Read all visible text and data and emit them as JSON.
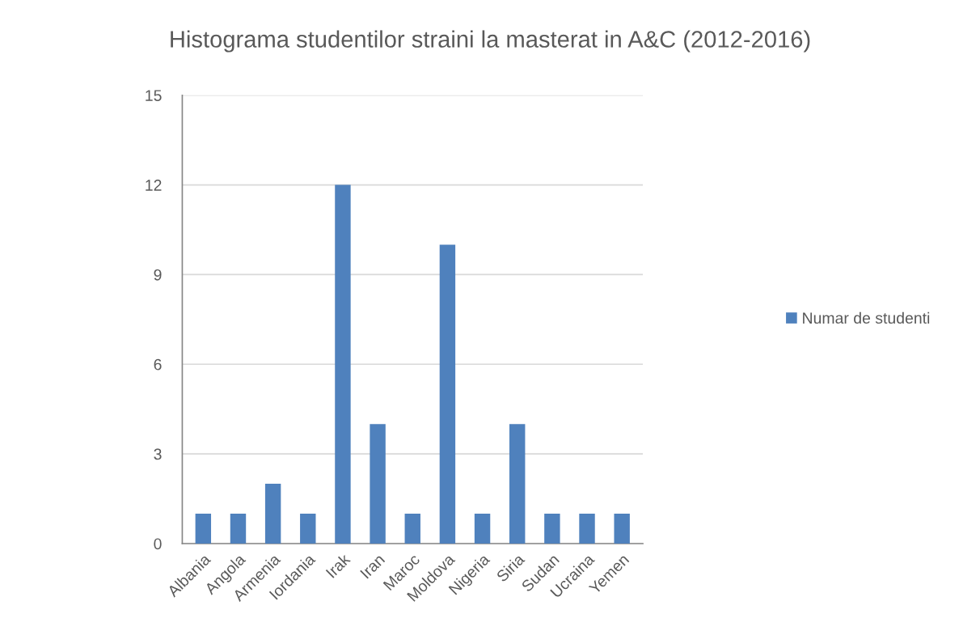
{
  "chart_data": {
    "type": "bar",
    "title": "Histograma studentilor straini la masterat in A&C (2012-2016)",
    "categories": [
      "Albania",
      "Angola",
      "Armenia",
      "Iordania",
      "Irak",
      "Iran",
      "Maroc",
      "Moldova",
      "Nigeria",
      "Siria",
      "Sudan",
      "Ucraina",
      "Yemen"
    ],
    "series": [
      {
        "name": "Numar de studenti",
        "color": "#4f81bd",
        "values": [
          1,
          1,
          2,
          1,
          12,
          4,
          1,
          10,
          1,
          4,
          1,
          1,
          1
        ]
      }
    ],
    "ylim": [
      0,
      15
    ],
    "yticks": [
      0,
      3,
      6,
      9,
      12,
      15
    ],
    "grid": "y",
    "legend": "right"
  }
}
